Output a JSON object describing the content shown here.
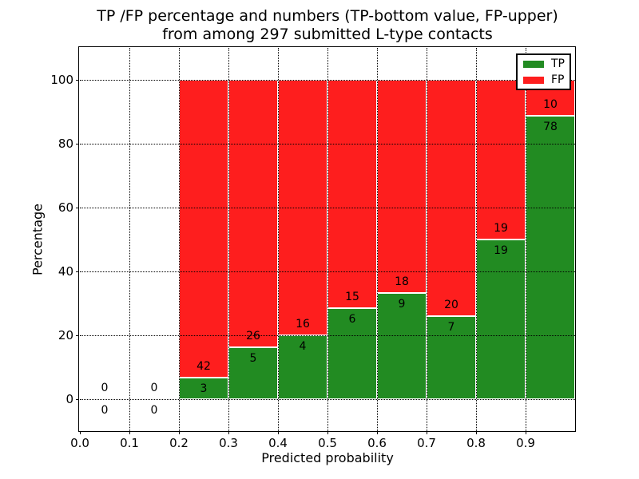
{
  "chart_data": {
    "type": "bar",
    "subtype": "stacked-percentage-histogram",
    "title_line1": "TP /FP percentage and numbers (TP-bottom value, FP-upper)",
    "title_line2": "from among 297 submitted L-type contacts",
    "xlabel": "Predicted probability",
    "ylabel": "Percentage",
    "xlim": [
      0.0,
      1.0
    ],
    "ylim": [
      -10,
      110
    ],
    "xticks": [
      "0.0",
      "0.1",
      "0.2",
      "0.3",
      "0.4",
      "0.5",
      "0.6",
      "0.7",
      "0.8",
      "0.9"
    ],
    "yticks": [
      "0",
      "20",
      "40",
      "60",
      "80",
      "100"
    ],
    "grid": "dotted black, both axes, drawn above bars",
    "bin_width": 0.1,
    "categories": [
      0.05,
      0.15,
      0.25,
      0.35,
      0.45,
      0.55,
      0.65,
      0.75,
      0.85,
      0.95
    ],
    "series": [
      {
        "name": "TP",
        "color": "#228b22",
        "values": [
          0,
          0,
          3,
          5,
          4,
          6,
          9,
          7,
          19,
          78
        ]
      },
      {
        "name": "FP",
        "color": "#fe1e1e",
        "values": [
          0,
          0,
          42,
          26,
          16,
          15,
          18,
          20,
          19,
          10
        ]
      }
    ],
    "bars_stack_to_percent": 100,
    "total_contacts": 297,
    "legend": {
      "position": "upper right",
      "labels": [
        "TP",
        "FP"
      ]
    },
    "annotation_note": "TP count printed just below the green/red boundary, FP count just above it; empty bins show 0 above and 0 below the zero line"
  }
}
